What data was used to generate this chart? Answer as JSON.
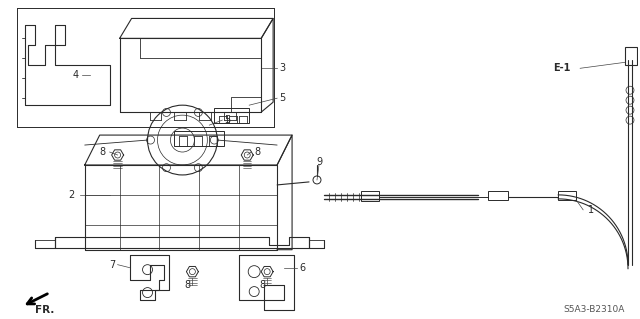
{
  "bg_color": "#ffffff",
  "line_color": "#2a2a2a",
  "fig_width": 6.4,
  "fig_height": 3.19,
  "diagram_code": "S5A3-B2310A"
}
